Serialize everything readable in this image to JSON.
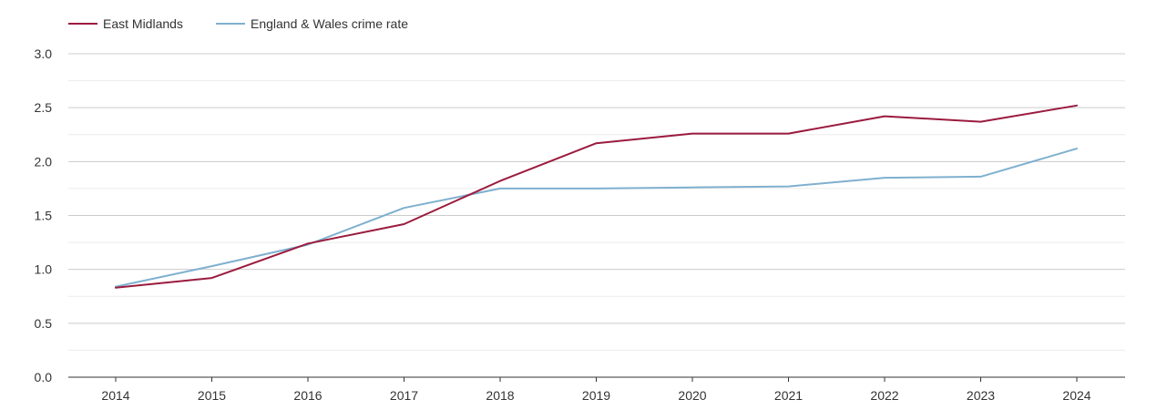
{
  "chart_data": {
    "type": "line",
    "title": "",
    "xlabel": "",
    "ylabel": "",
    "categories": [
      "2014",
      "2015",
      "2016",
      "2017",
      "2018",
      "2019",
      "2020",
      "2021",
      "2022",
      "2023",
      "2024"
    ],
    "series": [
      {
        "name": "East Midlands",
        "color": "#9b1b3e",
        "values": [
          0.83,
          0.92,
          1.24,
          1.42,
          1.82,
          2.17,
          2.26,
          2.26,
          2.42,
          2.37,
          2.52
        ]
      },
      {
        "name": "England & Wales crime rate",
        "color": "#7fb0cf",
        "values": [
          0.84,
          1.03,
          1.23,
          1.57,
          1.75,
          1.75,
          1.76,
          1.77,
          1.85,
          1.86,
          2.12
        ]
      }
    ],
    "ylim": [
      0,
      3
    ],
    "yticks": [
      "0.0",
      "0.5",
      "1.0",
      "1.5",
      "2.0",
      "2.5",
      "3.0"
    ],
    "grid": true,
    "legend_position": "top-left"
  }
}
